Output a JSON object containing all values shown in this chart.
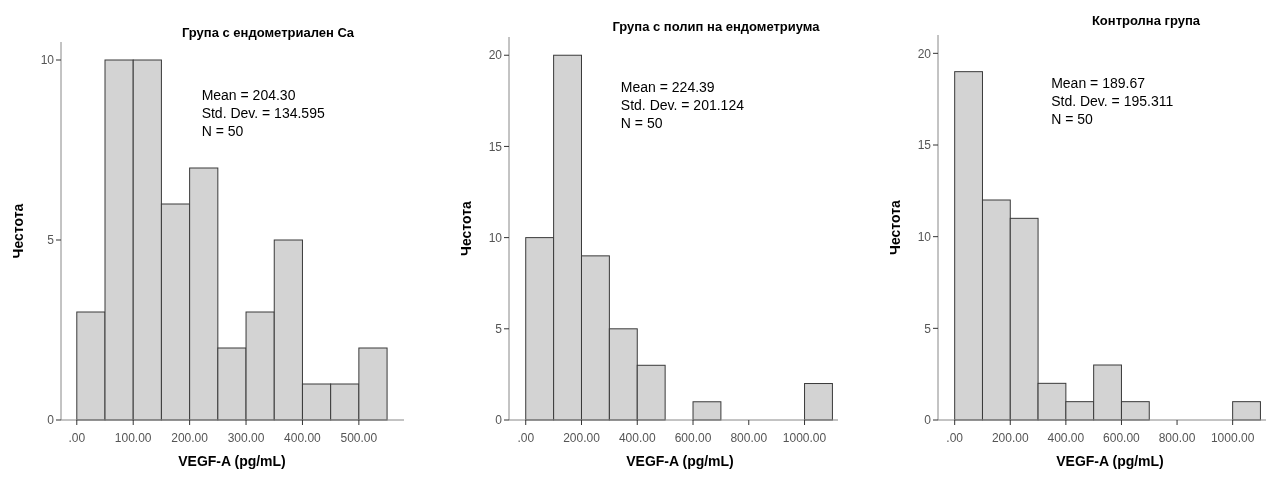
{
  "chart_data": [
    {
      "type": "histogram",
      "title": "Група с ендометриален Ca",
      "xlabel": "VEGF-A (pg/mL)",
      "ylabel": "Честота",
      "bins": [
        0,
        50,
        100,
        150,
        200,
        250,
        300,
        350,
        400,
        450,
        500,
        550
      ],
      "values": [
        3,
        10,
        10,
        6,
        7,
        2,
        3,
        5,
        1,
        1,
        2
      ],
      "color": "#d3d3d3",
      "xlim": [
        -28,
        580
      ],
      "xticks": [
        {
          "value": 0,
          "label": ".00"
        },
        {
          "value": 100,
          "label": "100.00"
        },
        {
          "value": 200,
          "label": "200.00"
        },
        {
          "value": 300,
          "label": "300.00"
        },
        {
          "value": 400,
          "label": "400.00"
        },
        {
          "value": 500,
          "label": "500.00"
        }
      ],
      "ylim": [
        0,
        10.5
      ],
      "yticks": [
        0,
        5,
        10
      ],
      "annotations": [
        "Mean = 204.30",
        "Std. Dev. = 134.595",
        "N = 50"
      ]
    },
    {
      "type": "histogram",
      "title": "Група с полип на ендометриума",
      "xlabel": "VEGF-A (pg/mL)",
      "ylabel": "Честота",
      "bins": [
        0,
        100,
        200,
        300,
        400,
        500,
        600,
        700,
        800,
        900,
        1000,
        1100
      ],
      "values": [
        10,
        20,
        9,
        5,
        3,
        0,
        1,
        0,
        0,
        0,
        2
      ],
      "color": "#d3d3d3",
      "xlim": [
        -60,
        1120
      ],
      "xticks": [
        {
          "value": 0,
          "label": ".00"
        },
        {
          "value": 200,
          "label": "200.00"
        },
        {
          "value": 400,
          "label": "400.00"
        },
        {
          "value": 600,
          "label": "600.00"
        },
        {
          "value": 800,
          "label": "800.00"
        },
        {
          "value": 1000,
          "label": "1000.00"
        }
      ],
      "ylim": [
        0,
        21
      ],
      "yticks": [
        0,
        5,
        10,
        15,
        20
      ],
      "annotations": [
        "Mean = 224.39",
        "Std. Dev. = 201.124",
        "N = 50"
      ]
    },
    {
      "type": "histogram",
      "title": "Контролна група",
      "xlabel": "VEGF-A (pg/mL)",
      "ylabel": "Честота",
      "bins": [
        0,
        100,
        200,
        300,
        400,
        500,
        600,
        700,
        800,
        900,
        1000,
        1100
      ],
      "values": [
        19,
        12,
        11,
        2,
        1,
        3,
        1,
        0,
        0,
        0,
        1
      ],
      "color": "#d3d3d3",
      "xlim": [
        -60,
        1120
      ],
      "xticks": [
        {
          "value": 0,
          "label": ".00"
        },
        {
          "value": 200,
          "label": "200.00"
        },
        {
          "value": 400,
          "label": "400.00"
        },
        {
          "value": 600,
          "label": "600.00"
        },
        {
          "value": 800,
          "label": "800.00"
        },
        {
          "value": 1000,
          "label": "1000.00"
        }
      ],
      "ylim": [
        0,
        21
      ],
      "yticks": [
        0,
        5,
        10,
        15,
        20
      ],
      "annotations": [
        "Mean = 189.67",
        "Std. Dev. = 195.311",
        "N = 50"
      ]
    }
  ]
}
